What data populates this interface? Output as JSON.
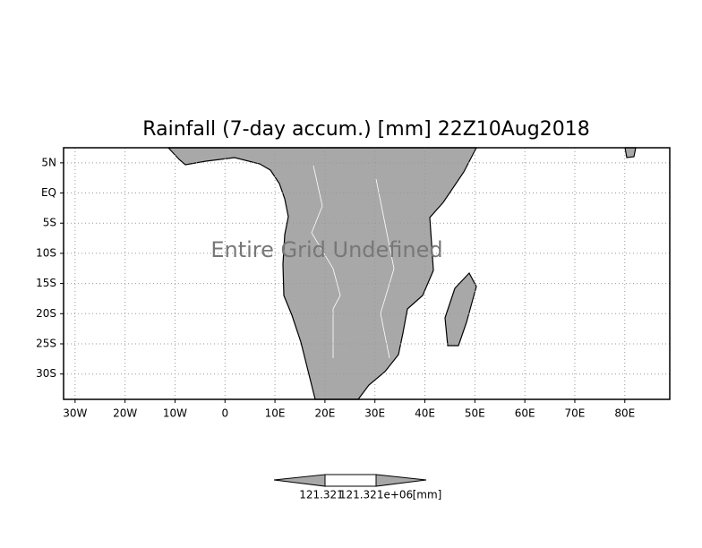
{
  "map": {
    "title": "Rainfall (7-day accum.) [mm] 22Z10Aug2018",
    "note": "Entire Grid Undefined",
    "xlim": [
      -32.3,
      89
    ],
    "ylim": [
      -34.2,
      7.5
    ],
    "xticks": [
      {
        "value": -30,
        "label": "30W"
      },
      {
        "value": -20,
        "label": "20W"
      },
      {
        "value": -10,
        "label": "10W"
      },
      0,
      {
        "value": 10,
        "label": "10E"
      },
      {
        "value": 20,
        "label": "20E"
      },
      {
        "value": 30,
        "label": "30E"
      },
      {
        "value": 40,
        "label": "40E"
      },
      {
        "value": 50,
        "label": "50E"
      },
      {
        "value": 60,
        "label": "60E"
      },
      {
        "value": 70,
        "label": "70E"
      },
      {
        "value": 80,
        "label": "80E"
      }
    ],
    "yticks": [
      {
        "value": 5,
        "label": "5N"
      },
      {
        "value": 0,
        "label": "EQ"
      },
      {
        "value": -5,
        "label": "5S"
      },
      {
        "value": -10,
        "label": "10S"
      },
      {
        "value": -15,
        "label": "15S"
      },
      {
        "value": -20,
        "label": "20S"
      },
      {
        "value": -25,
        "label": "25S"
      },
      {
        "value": -30,
        "label": "30S"
      }
    ],
    "grid": true,
    "colorbar": {
      "labels": [
        "121.321",
        "121.321e+06",
        "[mm]"
      ]
    }
  }
}
